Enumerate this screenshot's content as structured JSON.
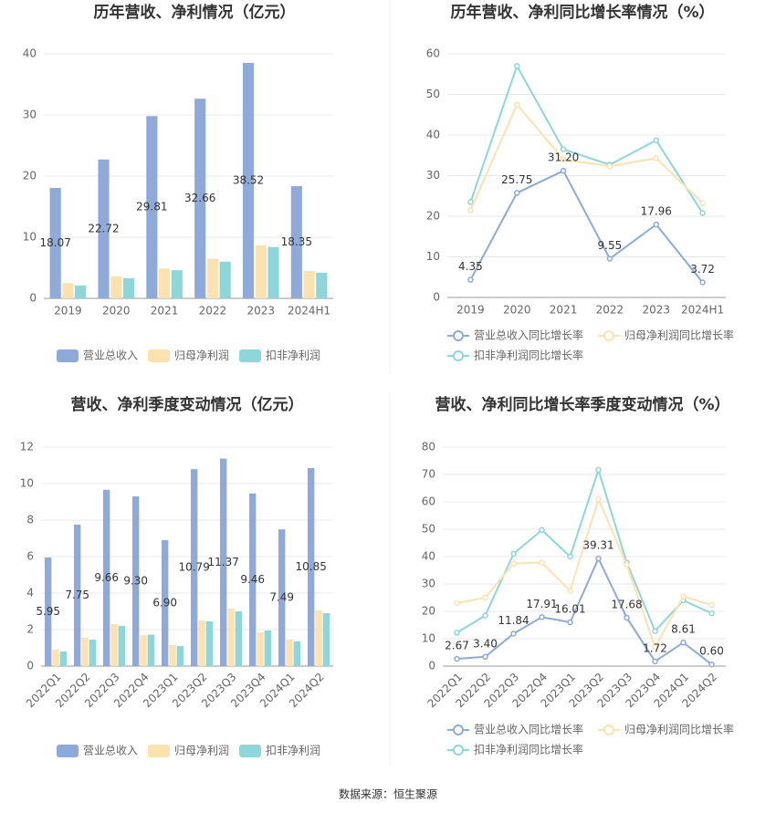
{
  "chart_data": [
    {
      "type": "bar",
      "title": "历年营收、净利情况（亿元）",
      "categories": [
        "2019",
        "2020",
        "2021",
        "2022",
        "2023",
        "2024H1"
      ],
      "series": [
        {
          "name": "营业总收入",
          "color": "#8eaadb",
          "show_labels": true,
          "values": [
            18.07,
            22.72,
            29.81,
            32.66,
            38.52,
            18.35
          ]
        },
        {
          "name": "归母净利润",
          "color": "#fde2b0",
          "values": [
            2.5,
            3.6,
            4.9,
            6.5,
            8.7,
            4.5
          ]
        },
        {
          "name": "扣非净利润",
          "color": "#8dd6da",
          "values": [
            2.1,
            3.3,
            4.6,
            6.0,
            8.4,
            4.2
          ]
        }
      ],
      "ylim": [
        0,
        40
      ],
      "yticks": [
        0,
        10,
        20,
        30,
        40
      ],
      "grid": true
    },
    {
      "type": "line",
      "title": "历年营收、净利同比增长率情况（%）",
      "categories": [
        "2019",
        "2020",
        "2021",
        "2022",
        "2023",
        "2024H1"
      ],
      "series": [
        {
          "name": "营业总收入同比增长率",
          "color": "#8eaadb",
          "show_labels": true,
          "values": [
            4.35,
            25.75,
            31.2,
            9.55,
            17.96,
            3.72
          ],
          "value_labels": [
            "4.35",
            "25.75",
            "31.20",
            "9.55",
            "17.96",
            "3.72"
          ]
        },
        {
          "name": "归母净利润同比增长率",
          "color": "#fde2b0",
          "values": [
            21.5,
            47.5,
            34,
            32.3,
            34.3,
            23.2
          ]
        },
        {
          "name": "扣非净利润同比增长率",
          "color": "#8dd6da",
          "values": [
            23.5,
            57,
            36.5,
            32.7,
            38.7,
            20.8
          ]
        }
      ],
      "ylim": [
        0,
        60
      ],
      "yticks": [
        0,
        10,
        20,
        30,
        40,
        50,
        60
      ],
      "grid": true
    },
    {
      "type": "bar",
      "title": "营收、净利季度变动情况（亿元）",
      "categories": [
        "2022Q1",
        "2022Q2",
        "2022Q3",
        "2022Q4",
        "2023Q1",
        "2023Q2",
        "2023Q3",
        "2023Q4",
        "2024Q1",
        "2024Q2"
      ],
      "series": [
        {
          "name": "营业总收入",
          "color": "#8eaadb",
          "show_labels": true,
          "values": [
            5.95,
            7.75,
            9.66,
            9.3,
            6.9,
            10.79,
            11.37,
            9.46,
            7.49,
            10.85
          ],
          "value_labels": [
            "5.95",
            "7.75",
            "9.66",
            "9.30",
            "6.90",
            "10.79",
            "11.37",
            "9.46",
            "7.49",
            "10.85"
          ]
        },
        {
          "name": "归母净利润",
          "color": "#fde2b0",
          "values": [
            0.9,
            1.55,
            2.3,
            1.7,
            1.15,
            2.5,
            3.15,
            1.85,
            1.45,
            3.05
          ]
        },
        {
          "name": "扣非净利润",
          "color": "#8dd6da",
          "values": [
            0.8,
            1.45,
            2.2,
            1.72,
            1.1,
            2.45,
            3.0,
            1.95,
            1.35,
            2.9
          ]
        }
      ],
      "ylim": [
        0,
        12
      ],
      "yticks": [
        0,
        2,
        4,
        6,
        8,
        10,
        12
      ],
      "grid": true
    },
    {
      "type": "line",
      "title": "营收、净利同比增长率季度变动情况（%）",
      "categories": [
        "2022Q1",
        "2022Q2",
        "2022Q3",
        "2022Q4",
        "2023Q1",
        "2023Q2",
        "2023Q3",
        "2023Q4",
        "2024Q1",
        "2024Q2"
      ],
      "series": [
        {
          "name": "营业总收入同比增长率",
          "color": "#8eaadb",
          "show_labels": true,
          "values": [
            2.67,
            3.4,
            11.84,
            17.91,
            16.01,
            39.31,
            17.68,
            1.72,
            8.61,
            0.6
          ],
          "value_labels": [
            "2.67",
            "3.40",
            "11.84",
            "17.91",
            "16.01",
            "39.31",
            "17.68",
            "1.72",
            "8.61",
            "0.60"
          ]
        },
        {
          "name": "归母净利润同比增长率",
          "color": "#fde2b0",
          "values": [
            23,
            25,
            37.5,
            37.8,
            27.5,
            61,
            37,
            7,
            25.5,
            22.3
          ]
        },
        {
          "name": "扣非净利润同比增长率",
          "color": "#8dd6da",
          "values": [
            12.2,
            18.5,
            41,
            49.7,
            40,
            71.7,
            37.8,
            12.8,
            24,
            19.3
          ]
        }
      ],
      "ylim": [
        0,
        80
      ],
      "yticks": [
        0,
        10,
        20,
        30,
        40,
        50,
        60,
        70,
        80
      ],
      "grid": true
    }
  ],
  "source": "数据来源：恒生聚源"
}
